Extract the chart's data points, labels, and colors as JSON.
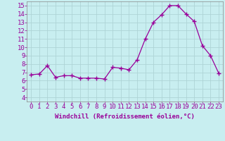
{
  "x": [
    0,
    1,
    2,
    3,
    4,
    5,
    6,
    7,
    8,
    9,
    10,
    11,
    12,
    13,
    14,
    15,
    16,
    17,
    18,
    19,
    20,
    21,
    22,
    23
  ],
  "y": [
    6.7,
    6.8,
    7.8,
    6.4,
    6.6,
    6.6,
    6.3,
    6.3,
    6.3,
    6.2,
    7.6,
    7.5,
    7.3,
    8.5,
    11.0,
    13.0,
    13.9,
    15.0,
    15.0,
    14.0,
    13.1,
    10.2,
    9.0,
    6.9
  ],
  "line_color": "#990099",
  "marker": "+",
  "marker_size": 4,
  "marker_linewidth": 1.0,
  "bg_color": "#c8eef0",
  "grid_color": "#aed4d6",
  "xlabel": "Windchill (Refroidissement éolien,°C)",
  "ylabel_ticks": [
    4,
    5,
    6,
    7,
    8,
    9,
    10,
    11,
    12,
    13,
    14,
    15
  ],
  "xlim": [
    -0.5,
    23.5
  ],
  "ylim": [
    3.5,
    15.5
  ],
  "xlabel_fontsize": 6.5,
  "tick_fontsize": 6.5,
  "tick_color": "#990099",
  "label_color": "#990099",
  "spine_color": "#888888",
  "linewidth": 0.9
}
